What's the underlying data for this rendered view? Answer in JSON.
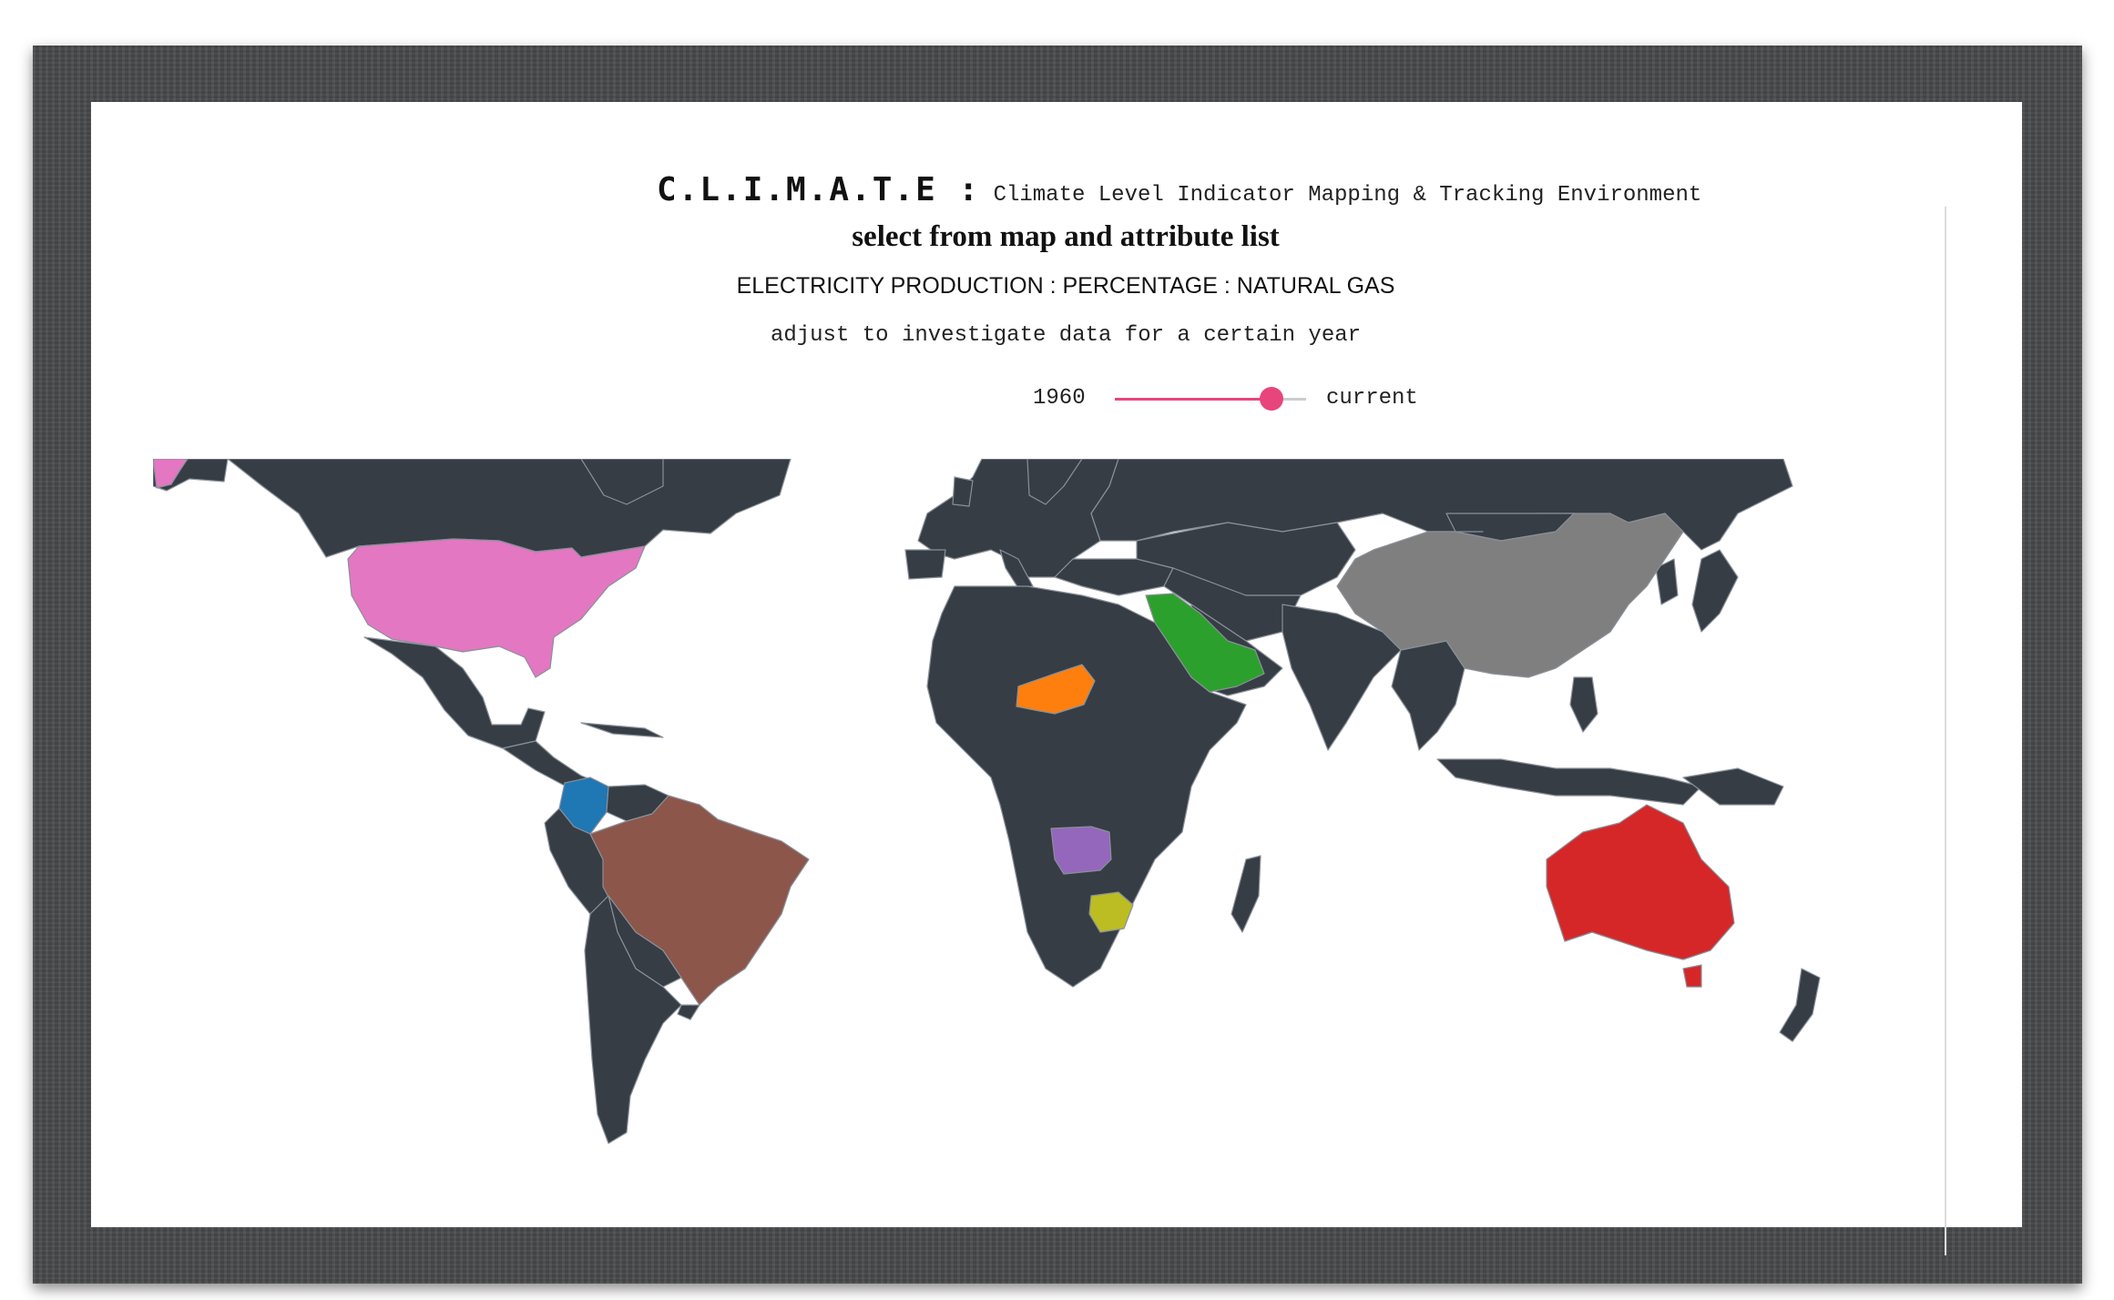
{
  "header": {
    "acronym": "C.L.I.M.A.T.E :",
    "subtitle": "Climate Level Indicator Mapping & Tracking Environment",
    "instruction": "select from map and attribute list",
    "attribute": "ELECTRICITY PRODUCTION : PERCENTAGE : NATURAL GAS",
    "adjust_hint": "adjust to investigate data for a certain year"
  },
  "year_slider": {
    "min_label": "1960",
    "max_label": "current",
    "value_fraction": 0.82,
    "accent": "#e8457c"
  },
  "map": {
    "base_color": "#363d45",
    "border_color": "#8a9099",
    "selected_countries": [
      {
        "country": "United States",
        "color": "#e377c2"
      },
      {
        "country": "Colombia",
        "color": "#1f77b4"
      },
      {
        "country": "Brazil",
        "color": "#8c564b"
      },
      {
        "country": "Niger",
        "color": "#ff7f0e"
      },
      {
        "country": "Saudi Arabia",
        "color": "#2ca02c"
      },
      {
        "country": "Angola",
        "color": "#9467bd"
      },
      {
        "country": "Botswana",
        "color": "#bcbd22"
      },
      {
        "country": "China",
        "color": "#7f7f7f"
      },
      {
        "country": "Australia",
        "color": "#d62728"
      }
    ]
  }
}
